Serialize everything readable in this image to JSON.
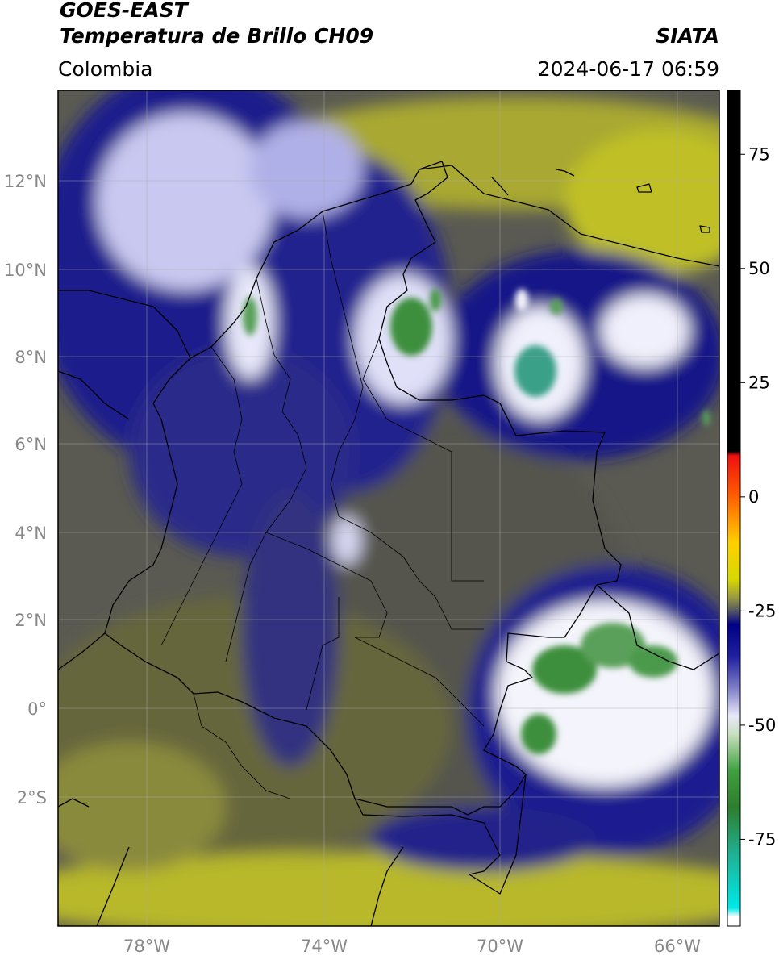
{
  "header": {
    "satellite": "GOES-EAST",
    "product": "Temperatura de Brillo CH09",
    "region": "Colombia",
    "org": "SIATA",
    "datetime": "2024-06-17 06:59"
  },
  "map": {
    "lat_ticks": [
      "12°N",
      "10°N",
      "8°N",
      "6°N",
      "4°N",
      "2°N",
      "0°",
      "2°S"
    ],
    "lon_ticks": [
      "78°W",
      "74°W",
      "70°W",
      "66°W"
    ],
    "lon_range": [
      -80,
      -65
    ],
    "lat_range": [
      -5,
      14
    ]
  },
  "colorbar": {
    "unit_note": "",
    "ticks": [
      "75",
      "50",
      "25",
      "0",
      "-25",
      "-50",
      "-75"
    ],
    "tick_values": [
      75,
      50,
      25,
      0,
      -25,
      -50,
      -75
    ],
    "range": [
      -94,
      89
    ],
    "stops": [
      {
        "v": 89,
        "c": "#000000"
      },
      {
        "v": 10,
        "c": "#000000"
      },
      {
        "v": 9,
        "c": "#ee1010"
      },
      {
        "v": 0,
        "c": "#ff6000"
      },
      {
        "v": -10,
        "c": "#ffd000"
      },
      {
        "v": -18,
        "c": "#d8d800"
      },
      {
        "v": -22,
        "c": "#9a9a40"
      },
      {
        "v": -25,
        "c": "#555566"
      },
      {
        "v": -28,
        "c": "#000088"
      },
      {
        "v": -35,
        "c": "#2020a0"
      },
      {
        "v": -42,
        "c": "#8080c8"
      },
      {
        "v": -48,
        "c": "#e8e8f8"
      },
      {
        "v": -52,
        "c": "#c8e0c0"
      },
      {
        "v": -60,
        "c": "#40a040"
      },
      {
        "v": -68,
        "c": "#2e7d2e"
      },
      {
        "v": -78,
        "c": "#20b090"
      },
      {
        "v": -90,
        "c": "#00e8e8"
      },
      {
        "v": -92,
        "c": "#ffffff"
      },
      {
        "v": -94,
        "c": "#ffffff"
      }
    ]
  },
  "colors": {
    "cloud_bright": "#ffffff",
    "cloud_blue": "#1a1a8c",
    "background_olive": "#7a7a3a",
    "cold_top_green": "#3d8f3d",
    "yellow_band": "#c8c820"
  }
}
